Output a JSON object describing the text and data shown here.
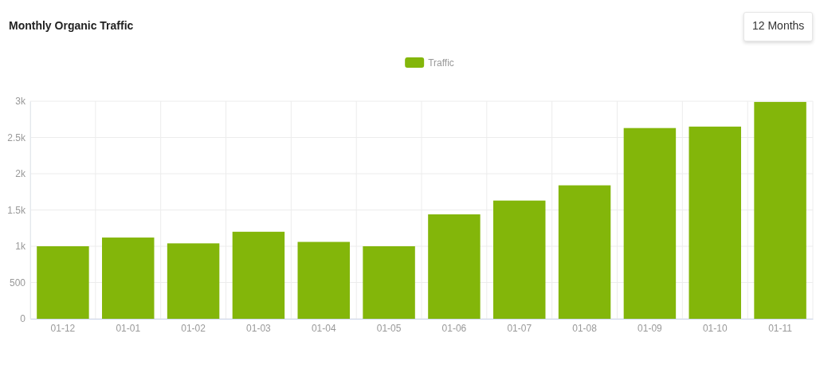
{
  "chart_data": {
    "type": "bar",
    "title": "Monthly Organic Traffic",
    "annotations": [
      "12 Months"
    ],
    "categories": [
      "01-12",
      "01-01",
      "01-02",
      "01-03",
      "01-04",
      "01-05",
      "01-06",
      "01-07",
      "01-08",
      "01-09",
      "01-10",
      "01-11"
    ],
    "series": [
      {
        "name": "Traffic",
        "color": "#83b60a",
        "values": [
          1000,
          1120,
          1040,
          1200,
          1060,
          1000,
          1440,
          1630,
          1840,
          2630,
          2650,
          2990
        ]
      }
    ],
    "ylim": [
      0,
      3000
    ],
    "yticks": [
      0,
      500,
      {
        "value": 1000,
        "label": "1k"
      },
      {
        "value": 1500,
        "label": "1.5k"
      },
      {
        "value": 2000,
        "label": "2k"
      },
      {
        "value": 2500,
        "label": "2.5k"
      },
      {
        "value": 3000,
        "label": "3k"
      }
    ],
    "grid": true,
    "legend": "top"
  }
}
